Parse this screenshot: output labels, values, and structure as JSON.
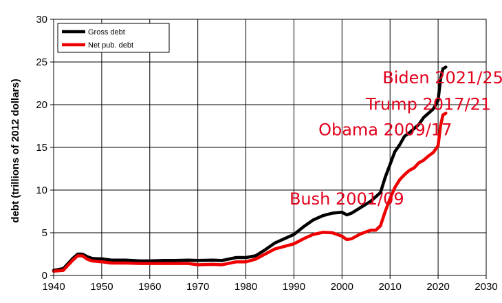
{
  "chart_data": {
    "type": "line",
    "title": "",
    "xlabel": "",
    "ylabel": "debt (trillions of  2012 dollars)",
    "xlim": [
      1940,
      2030
    ],
    "ylim": [
      0,
      30
    ],
    "x_ticks": [
      "1940",
      "1950",
      "1960",
      "1970",
      "1980",
      "1990",
      "2000",
      "2010",
      "2020",
      "2030"
    ],
    "y_ticks": [
      "0",
      "5",
      "10",
      "15",
      "20",
      "25",
      "30"
    ],
    "grid": true,
    "legend_position": "top-left",
    "series": [
      {
        "name": "Gross debt",
        "color": "#000000",
        "points": [
          [
            1940,
            0.6
          ],
          [
            1942,
            0.8
          ],
          [
            1943,
            1.4
          ],
          [
            1944,
            2.0
          ],
          [
            1945,
            2.5
          ],
          [
            1946,
            2.5
          ],
          [
            1947,
            2.2
          ],
          [
            1948,
            2.0
          ],
          [
            1949,
            1.95
          ],
          [
            1950,
            1.95
          ],
          [
            1952,
            1.8
          ],
          [
            1955,
            1.8
          ],
          [
            1958,
            1.7
          ],
          [
            1960,
            1.7
          ],
          [
            1963,
            1.75
          ],
          [
            1965,
            1.75
          ],
          [
            1968,
            1.8
          ],
          [
            1970,
            1.75
          ],
          [
            1973,
            1.8
          ],
          [
            1975,
            1.75
          ],
          [
            1978,
            2.1
          ],
          [
            1980,
            2.1
          ],
          [
            1982,
            2.3
          ],
          [
            1984,
            3.0
          ],
          [
            1986,
            3.8
          ],
          [
            1988,
            4.3
          ],
          [
            1990,
            4.8
          ],
          [
            1992,
            5.7
          ],
          [
            1994,
            6.5
          ],
          [
            1996,
            7.0
          ],
          [
            1998,
            7.3
          ],
          [
            2000,
            7.4
          ],
          [
            2001,
            7.1
          ],
          [
            2002,
            7.3
          ],
          [
            2004,
            8.0
          ],
          [
            2006,
            8.7
          ],
          [
            2008,
            9.7
          ],
          [
            2009,
            11.5
          ],
          [
            2010,
            13.0
          ],
          [
            2011,
            14.5
          ],
          [
            2012,
            15.3
          ],
          [
            2013,
            16.3
          ],
          [
            2014,
            16.7
          ],
          [
            2015,
            17.2
          ],
          [
            2016,
            17.7
          ],
          [
            2017,
            18.5
          ],
          [
            2018,
            19.0
          ],
          [
            2019,
            19.5
          ],
          [
            2020,
            20.5
          ],
          [
            2020.5,
            23.0
          ],
          [
            2021,
            24.2
          ],
          [
            2021.6,
            24.4
          ]
        ]
      },
      {
        "name": "Net pub. debt",
        "color": "#ee0000",
        "points": [
          [
            1940,
            0.5
          ],
          [
            1942,
            0.6
          ],
          [
            1943,
            1.2
          ],
          [
            1944,
            1.8
          ],
          [
            1945,
            2.3
          ],
          [
            1946,
            2.3
          ],
          [
            1947,
            1.9
          ],
          [
            1948,
            1.7
          ],
          [
            1950,
            1.6
          ],
          [
            1952,
            1.45
          ],
          [
            1955,
            1.45
          ],
          [
            1958,
            1.4
          ],
          [
            1960,
            1.4
          ],
          [
            1965,
            1.4
          ],
          [
            1968,
            1.4
          ],
          [
            1970,
            1.25
          ],
          [
            1973,
            1.3
          ],
          [
            1975,
            1.25
          ],
          [
            1978,
            1.6
          ],
          [
            1980,
            1.6
          ],
          [
            1982,
            1.9
          ],
          [
            1984,
            2.5
          ],
          [
            1986,
            3.1
          ],
          [
            1988,
            3.4
          ],
          [
            1990,
            3.7
          ],
          [
            1992,
            4.3
          ],
          [
            1994,
            4.8
          ],
          [
            1996,
            5.05
          ],
          [
            1998,
            5.0
          ],
          [
            2000,
            4.6
          ],
          [
            2001,
            4.2
          ],
          [
            2002,
            4.3
          ],
          [
            2004,
            4.9
          ],
          [
            2006,
            5.3
          ],
          [
            2007,
            5.3
          ],
          [
            2008,
            5.8
          ],
          [
            2009,
            7.5
          ],
          [
            2010,
            9.0
          ],
          [
            2011,
            10.3
          ],
          [
            2012,
            11.2
          ],
          [
            2013,
            11.8
          ],
          [
            2014,
            12.3
          ],
          [
            2015,
            12.6
          ],
          [
            2016,
            13.2
          ],
          [
            2017,
            13.5
          ],
          [
            2018,
            14.0
          ],
          [
            2019,
            14.4
          ],
          [
            2020,
            15.2
          ],
          [
            2020.5,
            17.5
          ],
          [
            2021,
            18.8
          ],
          [
            2021.6,
            19.0
          ]
        ]
      }
    ],
    "annotations": [
      {
        "text": "Biden 2021/25",
        "x": 2021,
        "y": 22.5
      },
      {
        "text": "Trump 2017/21",
        "x": 2018,
        "y": 19.4
      },
      {
        "text": "Obama 2009/17",
        "x": 2009,
        "y": 16.4
      },
      {
        "text": "Bush 2001/09",
        "x": 2001,
        "y": 8.3
      }
    ]
  }
}
